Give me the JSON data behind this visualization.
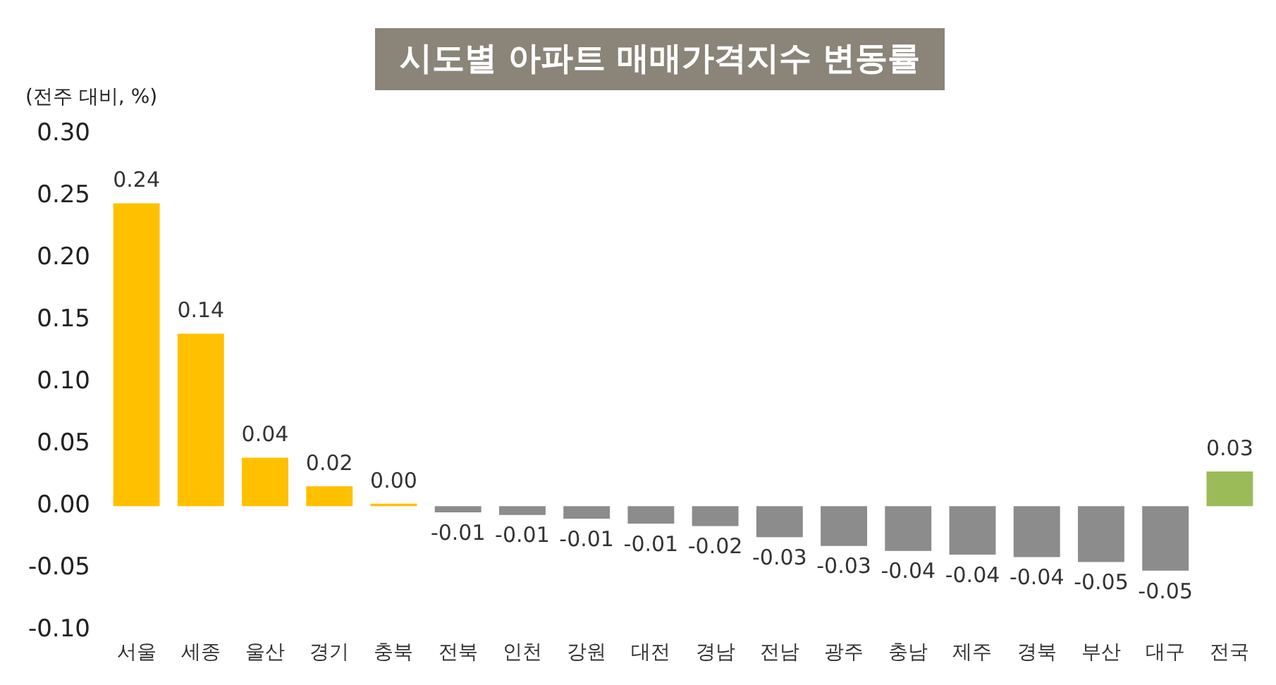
{
  "chart_data": {
    "type": "bar",
    "title": "시도별 아파트 매매가격지수 변동률",
    "ylabel": "(전주 대비, %)",
    "categories": [
      "서울",
      "세종",
      "울산",
      "경기",
      "충북",
      "전북",
      "인천",
      "강원",
      "대전",
      "경남",
      "전남",
      "광주",
      "충남",
      "제주",
      "경북",
      "부산",
      "대구",
      "전국"
    ],
    "values": [
      0.244,
      0.139,
      0.039,
      0.016,
      0.002,
      -0.005,
      -0.007,
      -0.01,
      -0.014,
      -0.016,
      -0.025,
      -0.032,
      -0.036,
      -0.039,
      -0.041,
      -0.045,
      -0.052,
      0.028
    ],
    "value_labels": [
      "0.24",
      "0.14",
      "0.04",
      "0.02",
      "0.00",
      "-0.01",
      "-0.01",
      "-0.01",
      "-0.01",
      "-0.02",
      "-0.03",
      "-0.03",
      "-0.04",
      "-0.04",
      "-0.04",
      "-0.05",
      "-0.05",
      "0.03"
    ],
    "colors": [
      "#ffc000",
      "#ffc000",
      "#ffc000",
      "#ffc000",
      "#ffc000",
      "#8c8c8c",
      "#8c8c8c",
      "#8c8c8c",
      "#8c8c8c",
      "#8c8c8c",
      "#8c8c8c",
      "#8c8c8c",
      "#8c8c8c",
      "#8c8c8c",
      "#8c8c8c",
      "#8c8c8c",
      "#8c8c8c",
      "#9bbb59"
    ],
    "ylim": [
      -0.1,
      0.3
    ],
    "yticks": [
      {
        "value": -0.1,
        "label": "-0.10"
      },
      {
        "value": -0.05,
        "label": "-0.05"
      },
      {
        "value": 0,
        "label": "0.00"
      },
      {
        "value": 0.05,
        "label": "0.05"
      },
      {
        "value": 0.1,
        "label": "0.10"
      },
      {
        "value": 0.15,
        "label": "0.15"
      },
      {
        "value": 0.2,
        "label": "0.20"
      },
      {
        "value": 0.25,
        "label": "0.25"
      },
      {
        "value": 0.3,
        "label": "0.30"
      }
    ],
    "grid": false,
    "legend": false
  }
}
